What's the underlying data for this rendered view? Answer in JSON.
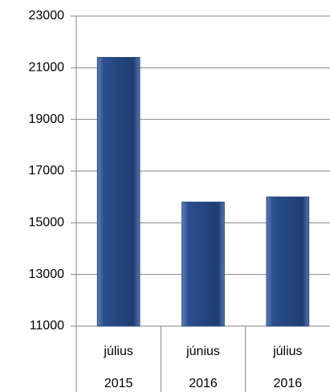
{
  "chart_data": {
    "type": "bar",
    "categories": [
      [
        "július",
        "2015"
      ],
      [
        "június",
        "2016"
      ],
      [
        "július",
        "2016"
      ]
    ],
    "values": [
      21400,
      15800,
      16000
    ],
    "color": "#24467f",
    "ylim": [
      11000,
      23000
    ],
    "yticks": [
      11000,
      13000,
      15000,
      17000,
      19000,
      21000,
      23000
    ],
    "grid": true
  }
}
